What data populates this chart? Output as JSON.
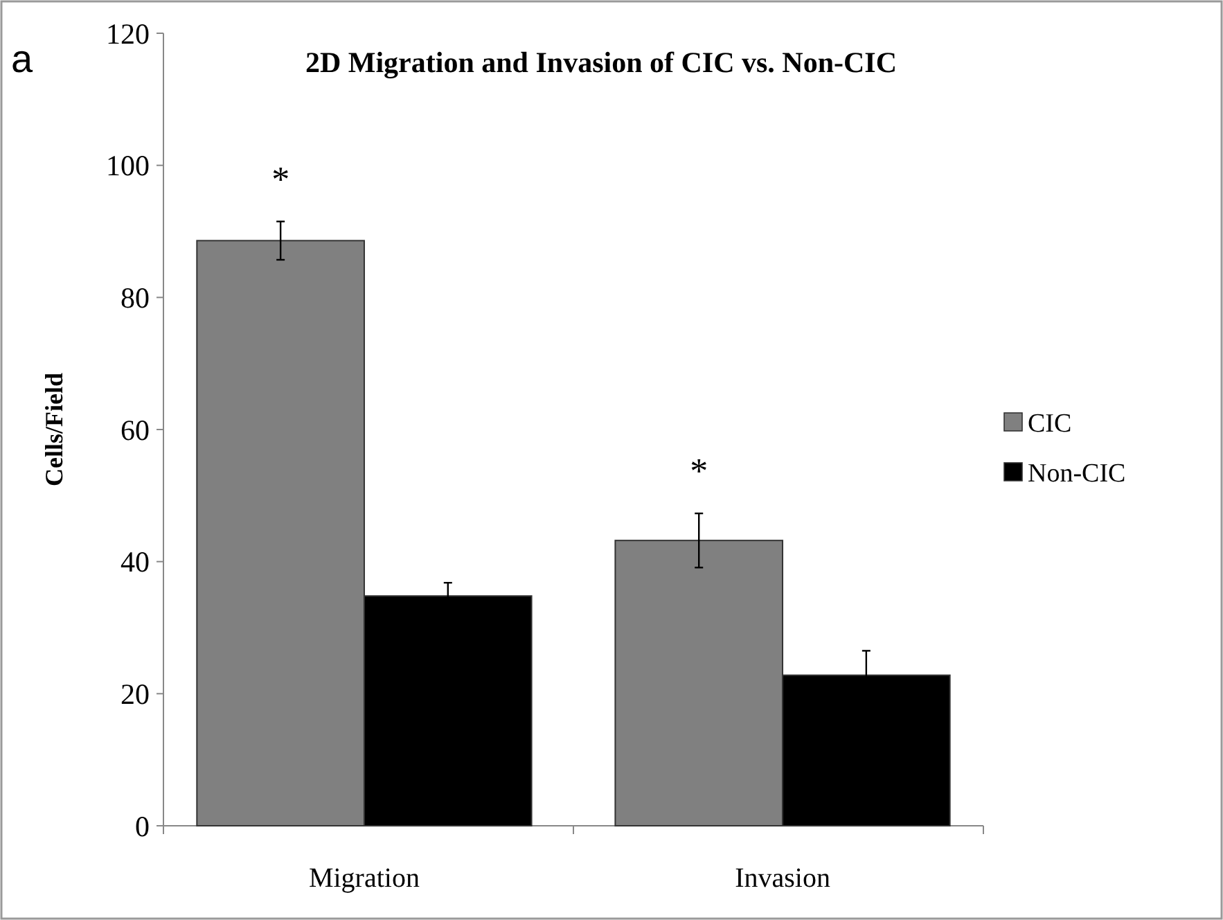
{
  "chart_data": {
    "type": "bar",
    "title": "2D Migration and Invasion of CIC vs. Non-CIC",
    "ylabel": "Cells/Field",
    "categories": [
      "Migration",
      "Invasion"
    ],
    "series": [
      {
        "name": "CIC",
        "color": "#808080",
        "values": [
          88.6,
          43.2
        ],
        "errors": [
          2.9,
          4.1
        ]
      },
      {
        "name": "Non-CIC",
        "color": "#000000",
        "values": [
          34.8,
          22.8
        ],
        "errors": [
          2,
          3.7
        ]
      }
    ],
    "ylim": [
      0,
      120
    ],
    "yticks": [
      0,
      20,
      40,
      60,
      80,
      100,
      120
    ],
    "grid": false,
    "legend": "right",
    "annotations": [
      "a",
      "*",
      "*"
    ]
  }
}
